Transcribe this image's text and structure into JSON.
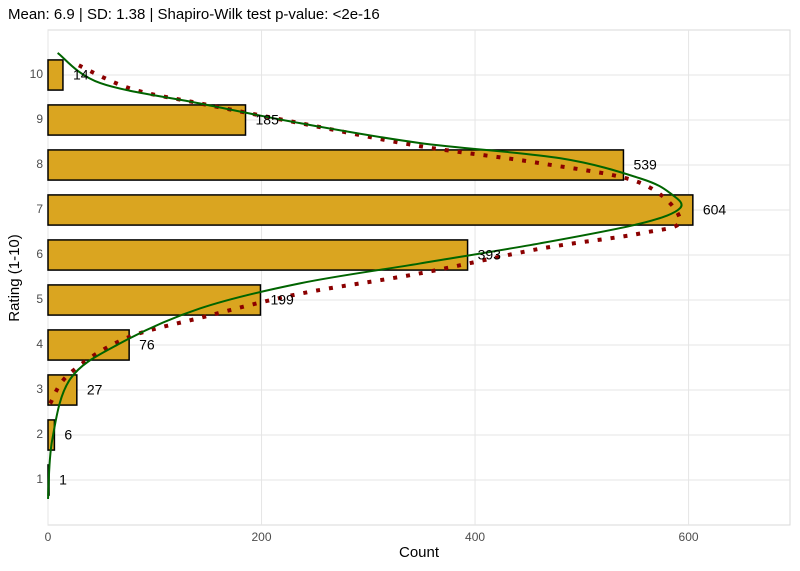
{
  "chart_data": {
    "type": "hbar",
    "title": "Mean: 6.9  |  SD: 1.38  |  Shapiro-Wilk test p-value: <2e-16",
    "xlabel": "Count",
    "ylabel": "Rating (1-10)",
    "categories": [
      1,
      2,
      3,
      4,
      5,
      6,
      7,
      8,
      9,
      10
    ],
    "values": [
      1,
      6,
      27,
      76,
      199,
      393,
      604,
      539,
      185,
      14
    ],
    "color": "#daa520",
    "xlim": [
      0,
      695
    ],
    "xticks": [
      0,
      200,
      400,
      600
    ],
    "ylim": [
      0,
      11
    ],
    "grid": true,
    "curves": [
      {
        "color": "#8b0000",
        "style": "dotted",
        "x": [
          2,
          20,
          72,
          147,
          236,
          348,
          461,
          555,
          592,
          555,
          461,
          348,
          236,
          142,
          77,
          25
        ],
        "y": [
          2.7,
          3.36,
          4.14,
          4.63,
          5.14,
          5.59,
          6.14,
          6.48,
          6.77,
          7.6,
          8.04,
          8.42,
          8.93,
          9.37,
          9.7,
          10.26
        ]
      },
      {
        "color": "#006400",
        "style": "solid",
        "x": [
          0,
          4,
          21,
          67,
          142,
          236,
          348,
          461,
          555,
          592,
          583,
          555,
          480,
          348,
          236,
          142,
          49,
          9
        ],
        "y": [
          0.58,
          1.9,
          3.25,
          4.03,
          4.81,
          5.37,
          5.81,
          6.26,
          6.7,
          7.04,
          7.37,
          7.7,
          8.15,
          8.49,
          8.93,
          9.37,
          9.82,
          10.49
        ]
      }
    ]
  }
}
